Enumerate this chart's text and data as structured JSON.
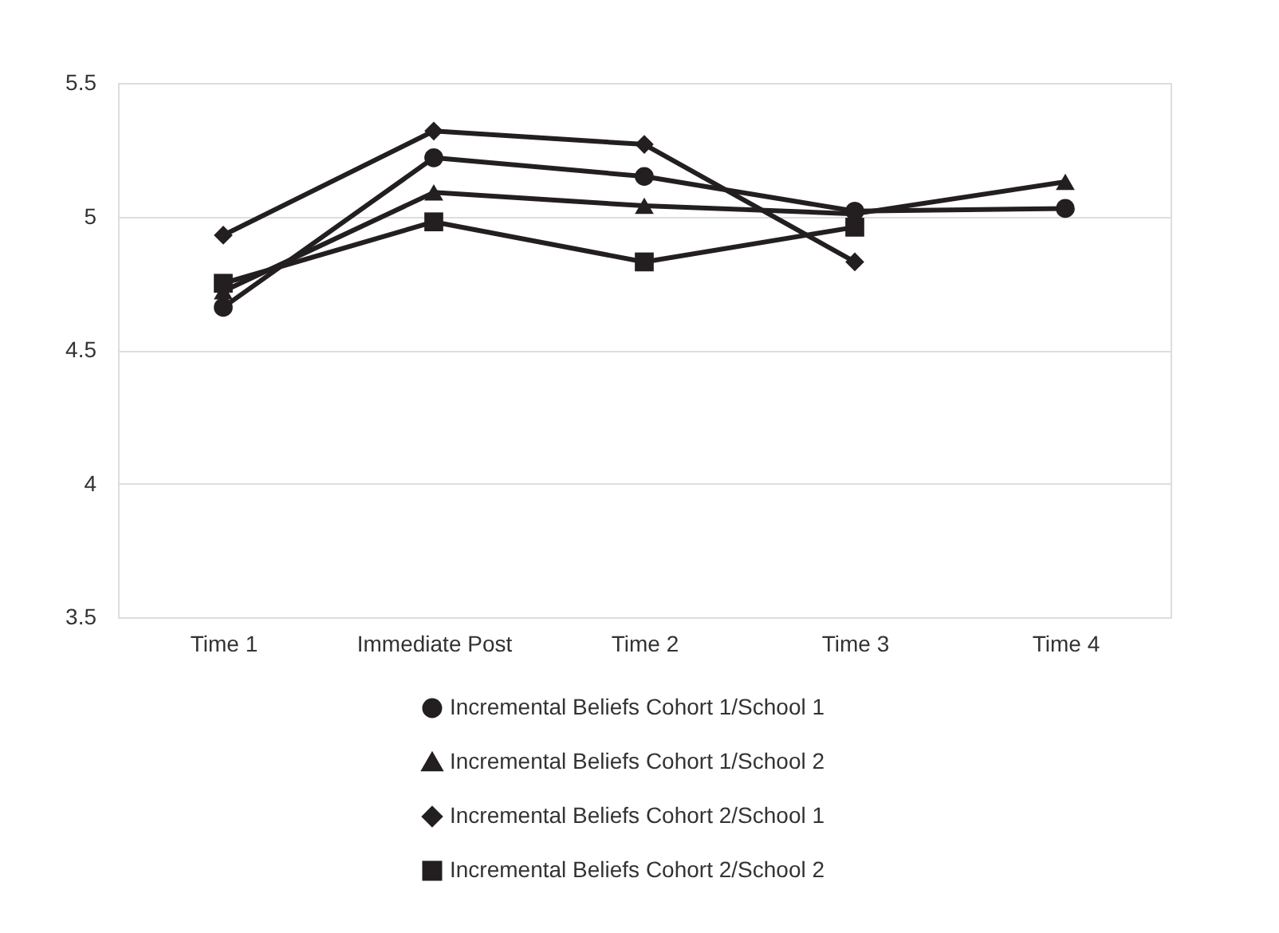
{
  "chart_data": {
    "type": "line",
    "categories": [
      "Time 1",
      "Immediate Post",
      "Time 2",
      "Time 3",
      "Time 4"
    ],
    "series": [
      {
        "name": "Incremental Beliefs Cohort 1/School 1",
        "color": "#231f20",
        "marker": "circle",
        "values": [
          4.66,
          5.22,
          5.15,
          5.02,
          5.03
        ]
      },
      {
        "name": "Incremental Beliefs Cohort 1/School 2",
        "color": "#231f20",
        "marker": "triangle",
        "values": [
          4.72,
          5.09,
          5.04,
          5.01,
          5.13
        ]
      },
      {
        "name": "Incremental Beliefs Cohort 2/School 1",
        "color": "#231f20",
        "marker": "diamond",
        "values": [
          4.93,
          5.32,
          5.27,
          4.83,
          null
        ]
      },
      {
        "name": "Incremental Beliefs Cohort 2/School 2",
        "color": "#231f20",
        "marker": "square",
        "values": [
          4.75,
          4.98,
          4.83,
          4.96,
          null
        ]
      }
    ],
    "ylim": [
      3.5,
      5.5
    ],
    "yticks": [
      3.5,
      4,
      4.5,
      5,
      5.5
    ],
    "grid": "y",
    "legend": "bottom",
    "line_style": "solid"
  }
}
